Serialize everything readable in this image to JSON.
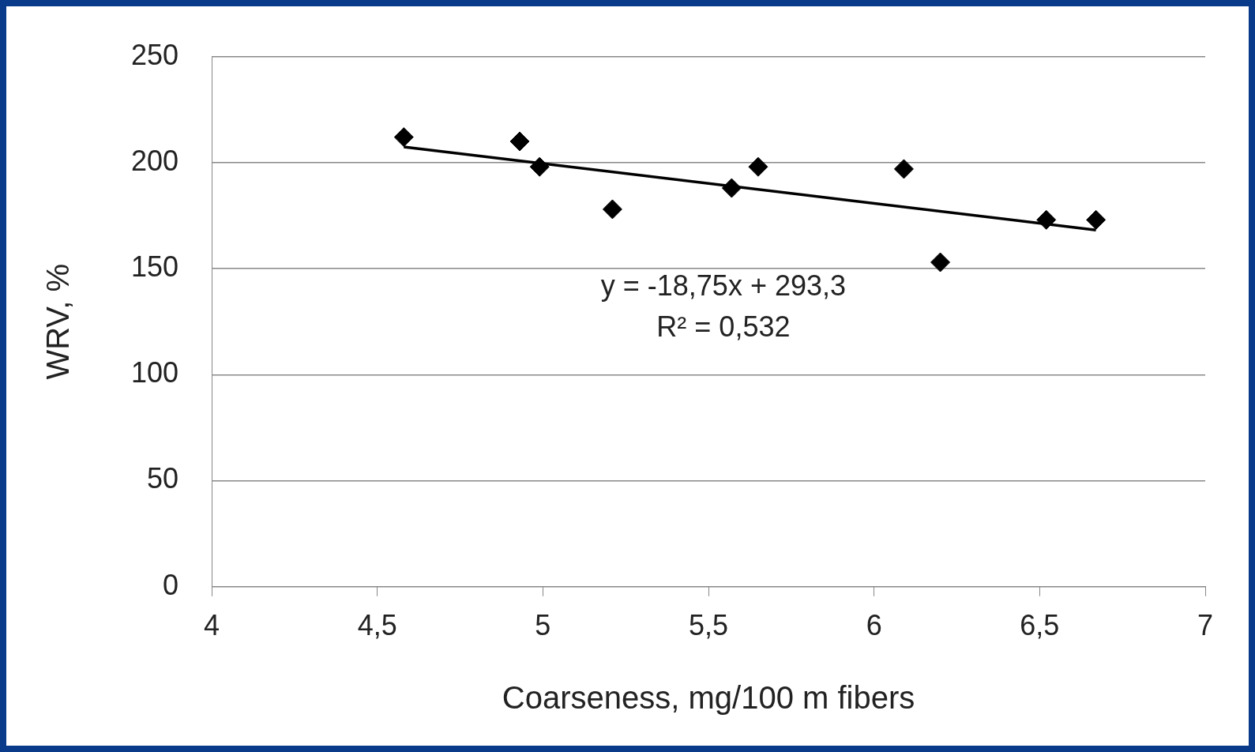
{
  "chart_data": {
    "type": "scatter",
    "xlabel": "Coarseness, mg/100 m fibers",
    "ylabel": "WRV, %",
    "series": [
      {
        "color": "#000000",
        "marker": "diamond",
        "x": [
          4.58,
          4.93,
          4.99,
          5.21,
          5.57,
          5.65,
          6.09,
          6.2,
          6.52,
          6.67
        ],
        "values": [
          212,
          210,
          198,
          178,
          188,
          198,
          197,
          153,
          173,
          173
        ]
      },
      {
        "type": "line",
        "color": "#000000",
        "marker": "none",
        "line_style": "solid",
        "x": [
          4.58,
          6.67
        ],
        "values": [
          207.4,
          168.2
        ]
      }
    ],
    "xlim": [
      4,
      7
    ],
    "xticks": [
      4,
      {
        "value": 4.5,
        "label": "4,5"
      },
      5,
      {
        "value": 5.5,
        "label": "5,5"
      },
      6,
      {
        "value": 6.5,
        "label": "6,5"
      },
      7
    ],
    "ylim": [
      0,
      250
    ],
    "yticks": [
      0,
      50,
      100,
      150,
      200,
      250
    ],
    "grid": "y",
    "legend": false,
    "annotations": [
      "y = -18,75x + 293,3",
      "R² = 0,532"
    ]
  }
}
